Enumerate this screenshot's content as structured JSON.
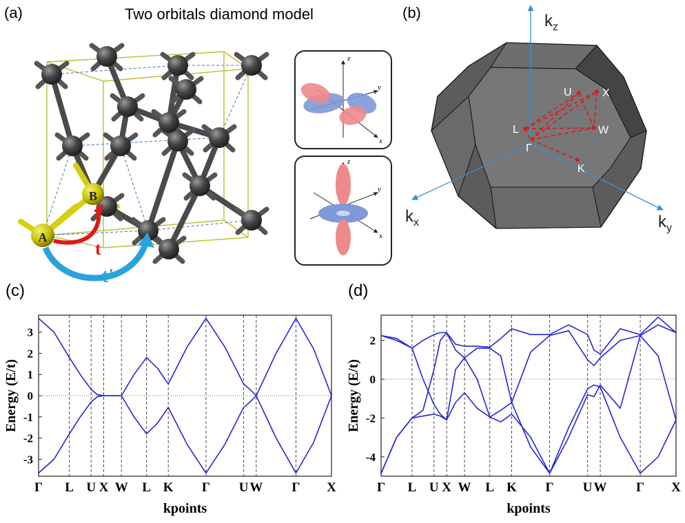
{
  "panels": {
    "a": {
      "label": "(a)",
      "title": "Two orbitals diamond model",
      "atom_a": "A",
      "atom_b": "B",
      "hop_nn": "t",
      "hop_nnn": "t'",
      "orbital_axes": [
        "z",
        "y",
        "x"
      ]
    },
    "b": {
      "label": "(b)",
      "axes": [
        {
          "k": "k",
          "sub": "z"
        },
        {
          "k": "k",
          "sub": "x"
        },
        {
          "k": "k",
          "sub": "y"
        }
      ],
      "points": [
        "U",
        "X",
        "L",
        "W",
        "Γ",
        "K"
      ]
    }
  },
  "chart_data": [
    {
      "type": "line",
      "label": "(c)",
      "xlabel": "kpoints",
      "ylabel": "Energy (E/t)",
      "x": [
        0,
        0.433,
        0.866,
        1.172,
        1.478,
        1.655,
        1.832,
        2.082,
        2.332,
        2.686,
        3.039,
        3.345,
        3.651,
        4.182,
        4.712,
        5.243,
        5.773,
        5.95,
        6.127,
        6.686,
        7.245,
        7.745,
        8.245
      ],
      "xlim": [
        0,
        8.245
      ],
      "xticks": [
        {
          "value": 0,
          "label": "Γ"
        },
        {
          "value": 0.866,
          "label": "L"
        },
        {
          "value": 1.478,
          "label": "U"
        },
        {
          "value": 1.832,
          "label": "X"
        },
        {
          "value": 2.332,
          "label": "W"
        },
        {
          "value": 3.039,
          "label": "L"
        },
        {
          "value": 3.651,
          "label": "K"
        },
        {
          "value": 4.712,
          "label": "Γ"
        },
        {
          "value": 5.773,
          "label": "U"
        },
        {
          "value": 6.127,
          "label": "W"
        },
        {
          "value": 7.245,
          "label": "Γ"
        },
        {
          "value": 8.245,
          "label": "X"
        }
      ],
      "ylim": [
        -3.8,
        3.8
      ],
      "yticks": [
        -3,
        -2,
        -1,
        0,
        1,
        2,
        3
      ],
      "grid": true,
      "reference_line": 0,
      "series": [
        {
          "color": "#2424d6",
          "values": [
            3.65,
            3.0,
            1.8,
            1.0,
            0.3,
            0.05,
            0,
            0,
            0,
            1.0,
            1.8,
            1.3,
            0.55,
            2.3,
            3.65,
            2.3,
            0.55,
            0.3,
            0,
            2.0,
            3.65,
            2.2,
            0
          ]
        },
        {
          "color": "#2424d6",
          "values": [
            -3.65,
            -3.0,
            -1.8,
            -1.0,
            -0.3,
            -0.05,
            0,
            0,
            0,
            -1.0,
            -1.8,
            -1.3,
            -0.55,
            -2.3,
            -3.65,
            -2.3,
            -0.55,
            -0.3,
            0,
            -2.0,
            -3.65,
            -2.2,
            0
          ]
        }
      ]
    },
    {
      "type": "line",
      "label": "(d)",
      "xlabel": "kpoints",
      "ylabel": "Energy (E/t)",
      "x": [
        0,
        0.433,
        0.866,
        1.172,
        1.478,
        1.655,
        1.832,
        2.082,
        2.332,
        2.686,
        3.039,
        3.345,
        3.651,
        4.182,
        4.712,
        5.243,
        5.773,
        5.95,
        6.127,
        6.686,
        7.245,
        7.745,
        8.245
      ],
      "xlim": [
        0,
        8.245
      ],
      "xticks": [
        {
          "value": 0,
          "label": "Γ"
        },
        {
          "value": 0.866,
          "label": "L"
        },
        {
          "value": 1.478,
          "label": "U"
        },
        {
          "value": 1.832,
          "label": "X"
        },
        {
          "value": 2.332,
          "label": "W"
        },
        {
          "value": 3.039,
          "label": "L"
        },
        {
          "value": 3.651,
          "label": "K"
        },
        {
          "value": 4.712,
          "label": "Γ"
        },
        {
          "value": 5.773,
          "label": "U"
        },
        {
          "value": 6.127,
          "label": "W"
        },
        {
          "value": 7.245,
          "label": "Γ"
        },
        {
          "value": 8.245,
          "label": "X"
        }
      ],
      "ylim": [
        -5,
        3.3
      ],
      "yticks": [
        -4,
        -2,
        0,
        2
      ],
      "grid": true,
      "reference_line": 0,
      "series": [
        {
          "color": "#2424d6",
          "values": [
            2.25,
            2.0,
            1.6,
            2.0,
            2.3,
            2.4,
            2.4,
            1.8,
            1.7,
            1.7,
            1.65,
            2.1,
            2.6,
            2.3,
            2.3,
            2.8,
            2.3,
            1.5,
            1.3,
            2.6,
            2.3,
            3.2,
            2.4
          ]
        },
        {
          "color": "#2424d6",
          "values": [
            2.25,
            2.1,
            1.6,
            0.0,
            -1.3,
            -1.8,
            -2.1,
            -1.2,
            -0.7,
            -1.5,
            -1.95,
            -1.6,
            -1.2,
            -3.5,
            -4.85,
            -2.5,
            -0.5,
            -0.3,
            -0.4,
            -3.0,
            -4.85,
            -4.0,
            -2.1
          ]
        },
        {
          "color": "#2424d6",
          "values": [
            -4.85,
            -3.0,
            -2.0,
            -1.9,
            -1.8,
            -1.9,
            -2.1,
            0.5,
            1.1,
            1.6,
            1.6,
            1.2,
            -1.2,
            1.4,
            2.25,
            2.5,
            1.0,
            0.7,
            1.1,
            2.0,
            2.25,
            1.2,
            -2.1
          ]
        },
        {
          "color": "#2424d6",
          "values": [
            -4.85,
            -3.0,
            -2.0,
            -1.6,
            0.5,
            2.0,
            2.4,
            1.5,
            1.1,
            0.0,
            -1.95,
            -2.2,
            -1.8,
            -3.0,
            -4.85,
            -3.0,
            -0.8,
            -0.9,
            -0.3,
            -1.5,
            2.25,
            2.8,
            2.4
          ]
        }
      ]
    }
  ]
}
